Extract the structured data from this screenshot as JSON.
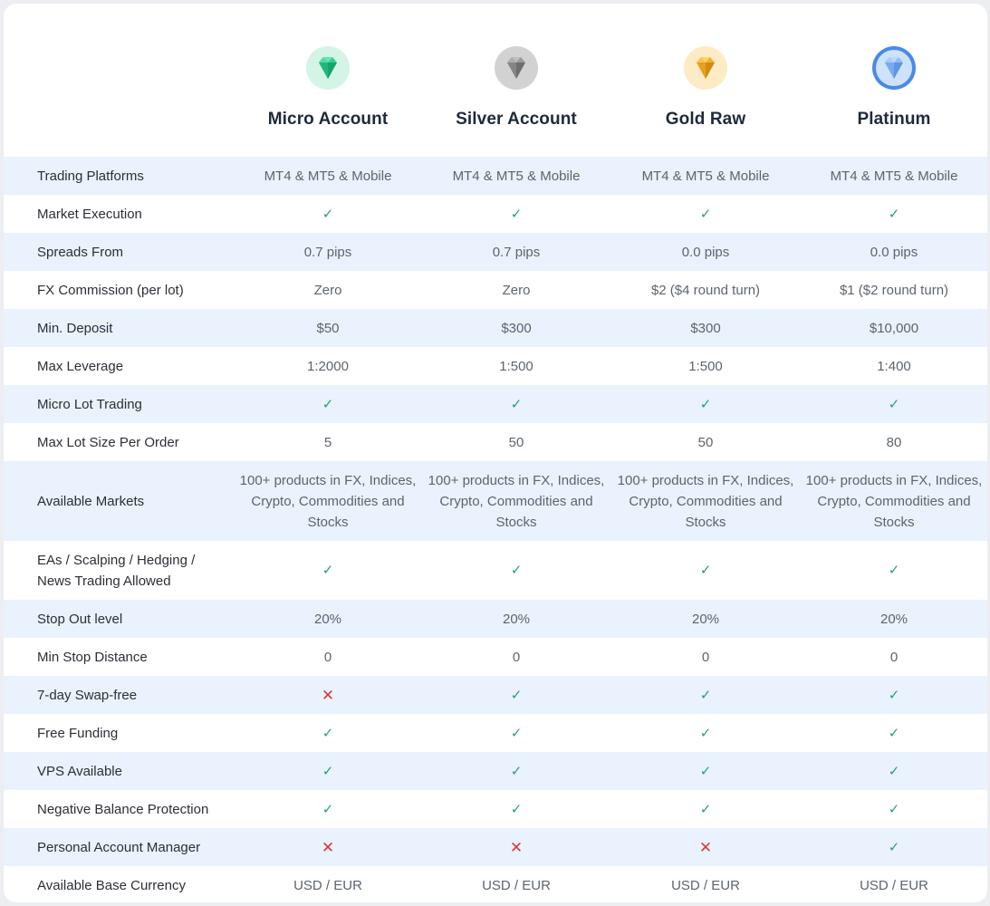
{
  "accounts": [
    {
      "name": "Micro Account",
      "icon": "emerald-diamond-icon",
      "color": "#2dd08f",
      "bg": "#d8f5e8"
    },
    {
      "name": "Silver Account",
      "icon": "silver-diamond-icon",
      "color": "#8e8e8e",
      "bg": "#d6d6d6"
    },
    {
      "name": "Gold Raw",
      "icon": "gold-diamond-icon",
      "color": "#e8a81c",
      "bg": "#fdeac3"
    },
    {
      "name": "Platinum",
      "icon": "platinum-diamond-icon",
      "color": "#7fb0f0",
      "bg": "#4a8ae8"
    }
  ],
  "rows": [
    {
      "label": "Trading Platforms",
      "values": [
        "MT4 & MT5 & Mobile",
        "MT4 & MT5 & Mobile",
        "MT4 & MT5 & Mobile",
        "MT4 & MT5 & Mobile"
      ]
    },
    {
      "label": "Market Execution",
      "values": [
        "✓",
        "✓",
        "✓",
        "✓"
      ]
    },
    {
      "label": "Spreads From",
      "values": [
        "0.7 pips",
        "0.7 pips",
        "0.0 pips",
        "0.0 pips"
      ]
    },
    {
      "label": "FX Commission (per lot)",
      "values": [
        "Zero",
        "Zero",
        "$2 ($4 round turn)",
        "$1 ($2 round turn)"
      ]
    },
    {
      "label": "Min. Deposit",
      "values": [
        "$50",
        "$300",
        "$300",
        "$10,000"
      ]
    },
    {
      "label": "Max Leverage",
      "values": [
        "1:2000",
        "1:500",
        "1:500",
        "1:400"
      ]
    },
    {
      "label": "Micro Lot Trading",
      "values": [
        "✓",
        "✓",
        "✓",
        "✓"
      ]
    },
    {
      "label": "Max Lot Size Per Order",
      "values": [
        "5",
        "50",
        "50",
        "80"
      ]
    },
    {
      "label": "Available Markets",
      "values": [
        "100+ products in FX, Indices, Crypto, Commodities and Stocks",
        "100+ products in FX, Indices, Crypto, Commodities and Stocks",
        "100+ products in FX, Indices, Crypto, Commodities and Stocks",
        "100+ products in FX, Indices, Crypto, Commodities and Stocks"
      ]
    },
    {
      "label": "EAs / Scalping / Hedging / News Trading Allowed",
      "values": [
        "✓",
        "✓",
        "✓",
        "✓"
      ]
    },
    {
      "label": "Stop Out level",
      "values": [
        "20%",
        "20%",
        "20%",
        "20%"
      ]
    },
    {
      "label": "Min Stop Distance",
      "values": [
        "0",
        "0",
        "0",
        "0"
      ]
    },
    {
      "label": "7-day Swap-free",
      "values": [
        "✕",
        "✓",
        "✓",
        "✓"
      ]
    },
    {
      "label": "Free Funding",
      "values": [
        "✓",
        "✓",
        "✓",
        "✓"
      ]
    },
    {
      "label": "VPS Available",
      "values": [
        "✓",
        "✓",
        "✓",
        "✓"
      ]
    },
    {
      "label": "Negative Balance Protection",
      "values": [
        "✓",
        "✓",
        "✓",
        "✓"
      ]
    },
    {
      "label": "Personal Account Manager",
      "values": [
        "✕",
        "✕",
        "✕",
        "✓"
      ]
    },
    {
      "label": "Available Base Currency",
      "values": [
        "USD / EUR",
        "USD / EUR",
        "USD / EUR",
        "USD / EUR"
      ]
    }
  ]
}
